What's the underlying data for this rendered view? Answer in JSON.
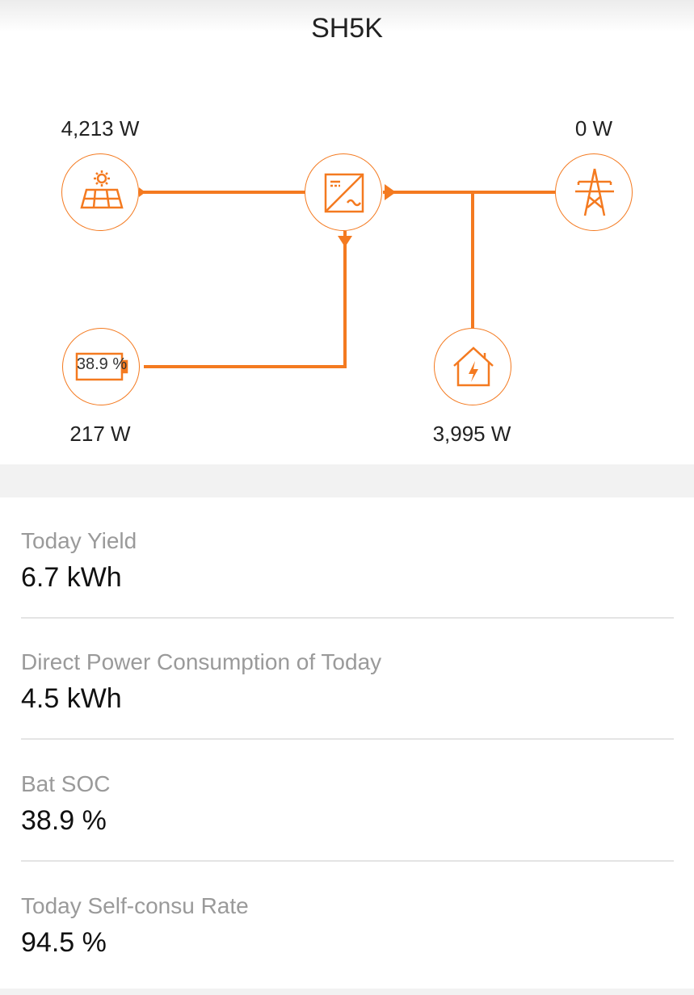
{
  "header": {
    "title": "SH5K"
  },
  "flow": {
    "pv_power": "4,213 W",
    "grid_power": "0 W",
    "battery_power": "217 W",
    "load_power": "3,995 W",
    "battery_soc": "38.9 %",
    "accent_color": "#f47a20",
    "nodes": {
      "pv": "solar-panel-icon",
      "inverter": "inverter-icon",
      "grid": "power-tower-icon",
      "battery": "battery-icon",
      "load": "house-icon"
    }
  },
  "stats": [
    {
      "label": "Today Yield",
      "value": "6.7 kWh"
    },
    {
      "label": "Direct Power Consumption of Today",
      "value": "4.5 kWh"
    },
    {
      "label": "Bat SOC",
      "value": "38.9 %"
    },
    {
      "label": "Today Self-consu Rate",
      "value": "94.5 %"
    }
  ]
}
